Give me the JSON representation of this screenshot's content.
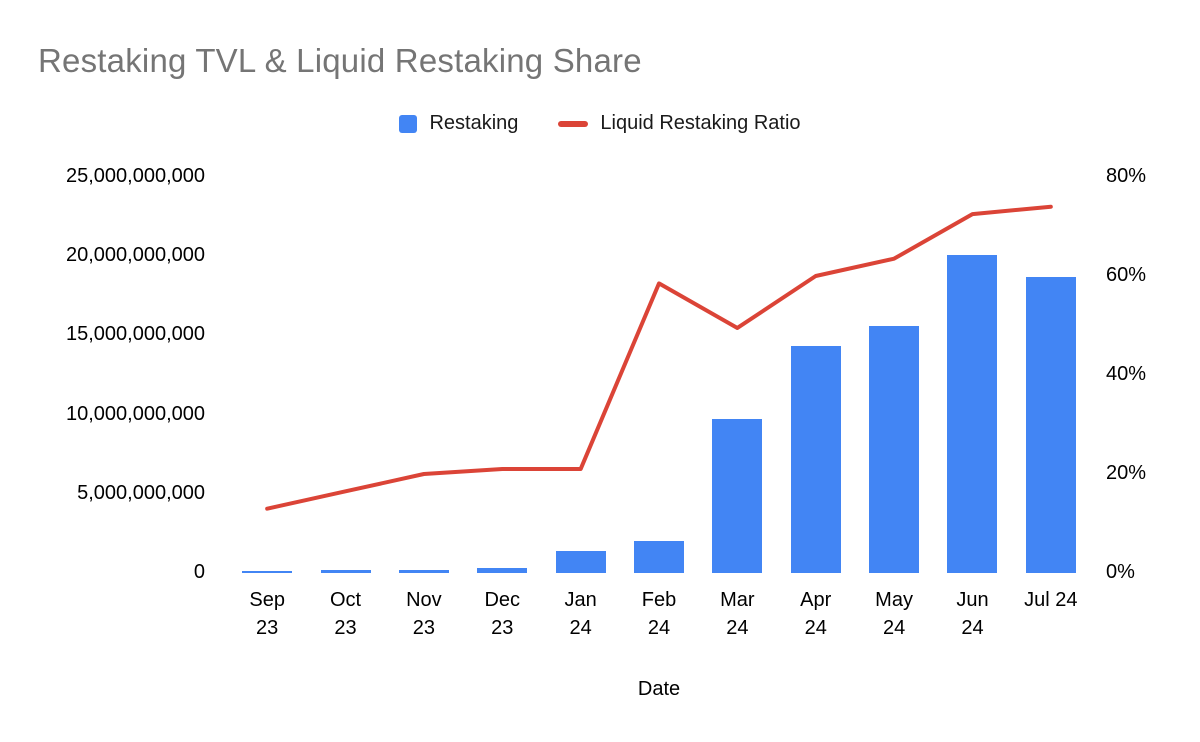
{
  "title": "Restaking TVL & Liquid Restaking Share",
  "legend": [
    {
      "label": "Restaking",
      "type": "bar",
      "color": "#4285f4"
    },
    {
      "label": "Liquid Restaking Ratio",
      "type": "line",
      "color": "#db4437"
    }
  ],
  "colors": {
    "background": "#ffffff",
    "title": "#757575",
    "text": "#000000",
    "bar": "#4285f4",
    "line": "#db4437"
  },
  "chart_data": {
    "type": "combo",
    "title": "Restaking TVL & Liquid Restaking Share",
    "xlabel": "Date",
    "ylabel_left": "",
    "ylabel_right": "",
    "grid": false,
    "legend_position": "top",
    "categories": [
      "Sep 23",
      "Oct 23",
      "Nov 23",
      "Dec 23",
      "Jan 24",
      "Feb 24",
      "Mar 24",
      "Apr 24",
      "May 24",
      "Jun 24",
      "Jul 24"
    ],
    "category_label_lines": [
      [
        "Sep",
        "23"
      ],
      [
        "Oct",
        "23"
      ],
      [
        "Nov",
        "23"
      ],
      [
        "Dec",
        "23"
      ],
      [
        "Jan",
        "24"
      ],
      [
        "Feb",
        "24"
      ],
      [
        "Mar",
        "24"
      ],
      [
        "Apr",
        "24"
      ],
      [
        "May",
        "24"
      ],
      [
        "Jun",
        "24"
      ],
      [
        "Jul 24"
      ]
    ],
    "series": [
      {
        "name": "Restaking",
        "type": "bar",
        "axis": "left",
        "color": "#4285f4",
        "values": [
          150000000,
          160000000,
          180000000,
          300000000,
          1400000000,
          2000000000,
          9700000000,
          14300000000,
          15600000000,
          20100000000,
          18700000000
        ]
      },
      {
        "name": "Liquid Restaking Ratio",
        "type": "line",
        "axis": "right",
        "color": "#db4437",
        "values_percent": [
          13,
          16.5,
          20,
          21,
          21,
          58.5,
          49.5,
          60,
          63.5,
          72.5,
          74
        ]
      }
    ],
    "left_axis": {
      "min": 0,
      "max": 25000000000,
      "ticks": [
        0,
        5000000000,
        10000000000,
        15000000000,
        20000000000,
        25000000000
      ],
      "tick_labels": [
        "0",
        "5,000,000,000",
        "10,000,000,000",
        "15,000,000,000",
        "20,000,000,000",
        "25,000,000,000"
      ]
    },
    "right_axis": {
      "min": 0,
      "max": 80,
      "ticks": [
        0,
        20,
        40,
        60,
        80
      ],
      "tick_labels": [
        "0%",
        "20%",
        "40%",
        "60%",
        "80%"
      ]
    }
  }
}
